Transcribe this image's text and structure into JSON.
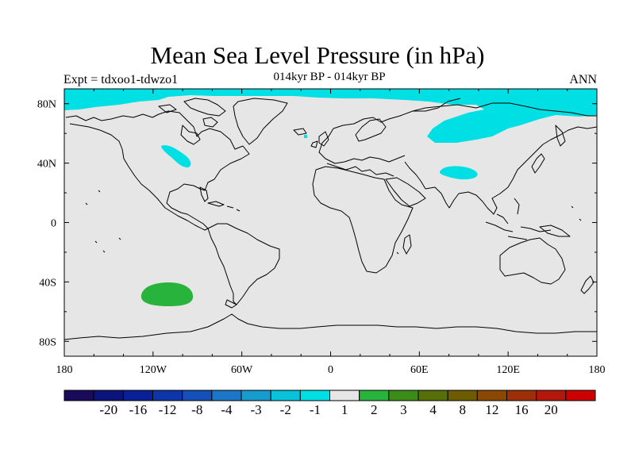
{
  "title": "Mean Sea Level Pressure (in hPa)",
  "left_label": "Expt = tdxoo1-tdwzo1",
  "center_label": "014kyr BP - 014kyr BP",
  "right_label": "ANN",
  "colors": {
    "background": "#e6e6e6",
    "negative_fill": "#00e0e4",
    "positive_fill": "#28b43c",
    "coastline": "#000000"
  },
  "map": {
    "lon_range": [
      -180,
      180
    ],
    "lat_range": [
      -90,
      90
    ],
    "x_ticks": [
      "180",
      "120W",
      "60W",
      "0",
      "60E",
      "120E",
      "180"
    ],
    "y_ticks": [
      "80N",
      "40N",
      "0",
      "40S",
      "80S"
    ]
  },
  "colorbar": {
    "colors": [
      "#1a0a5a",
      "#0a147a",
      "#0a2096",
      "#0c36aa",
      "#1450b8",
      "#1c76c8",
      "#169ccf",
      "#08c2dc",
      "#00e0e4",
      "#e6e6e6",
      "#28b43c",
      "#3c8c18",
      "#566f08",
      "#6e5c00",
      "#8a4800",
      "#9e2f08",
      "#b4180c",
      "#cc0000"
    ],
    "labels": [
      "-20",
      "-16",
      "-12",
      "-8",
      "-4",
      "-3",
      "-2",
      "-1",
      "1",
      "2",
      "3",
      "4",
      "8",
      "12",
      "16",
      "20"
    ]
  }
}
